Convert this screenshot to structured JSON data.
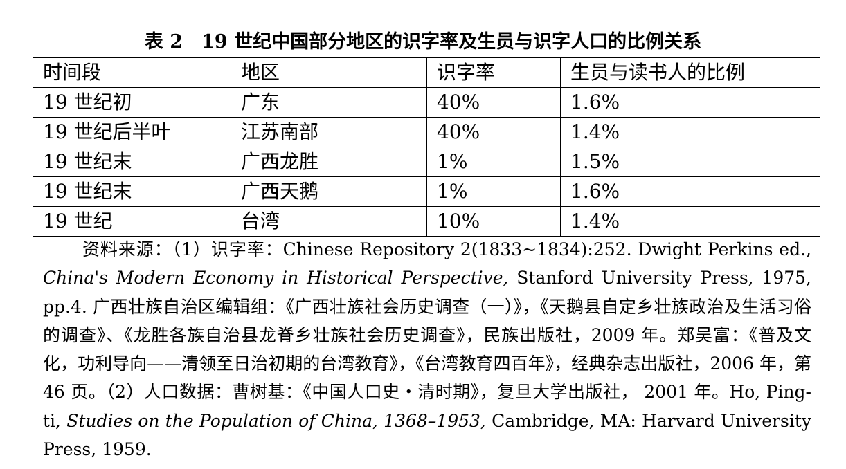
{
  "title": "表 2　19 世纪中国部分地区的识字率及生员与识字人口的比例关系",
  "table": {
    "headers": [
      "时间段",
      "地区",
      "识字率",
      "生员与读书人的比例"
    ],
    "rows": [
      [
        "19 世纪初",
        "广东",
        "40%",
        "1.6%"
      ],
      [
        "19 世纪后半叶",
        "江苏南部",
        "40%",
        "1.4%"
      ],
      [
        "19 世纪末",
        "广西龙胜",
        "1%",
        "1.5%"
      ],
      [
        "19 世纪末",
        "广西天鹅",
        "1%",
        "1.6%"
      ],
      [
        "19 世纪",
        "台湾",
        "10%",
        "1.4%"
      ]
    ]
  },
  "source": {
    "s1": "资料来源：（1）识字率：Chinese Repository 2(1833~1834):252. Dwight Perkins ed., ",
    "s2": "China's Modern Economy in Historical Perspective,",
    "s3": " Stanford University Press, 1975, pp.4. 广西壮族自治区编辑组：《广西壮族社会历史调查（一）》，《天鹅县自定乡壮族政治及生活习俗的调查》、《龙胜各族自治县龙脊乡壮族社会历史调查》，民族出版社，2009 年。郑吴富：《普及文化，功利导向——清领至日治初期的台湾教育》，《台湾教育四百年》，经典杂志出版社，2006 年，第 46 页。（2）人口数据：曹树基：《中国人口史・清时期》，复旦大学出版社， 2001 年。Ho, Ping-ti, ",
    "s4": "Studies on the Population of China, 1368–1953,",
    "s5": " Cambridge, MA: Harvard University Press, 1959."
  }
}
